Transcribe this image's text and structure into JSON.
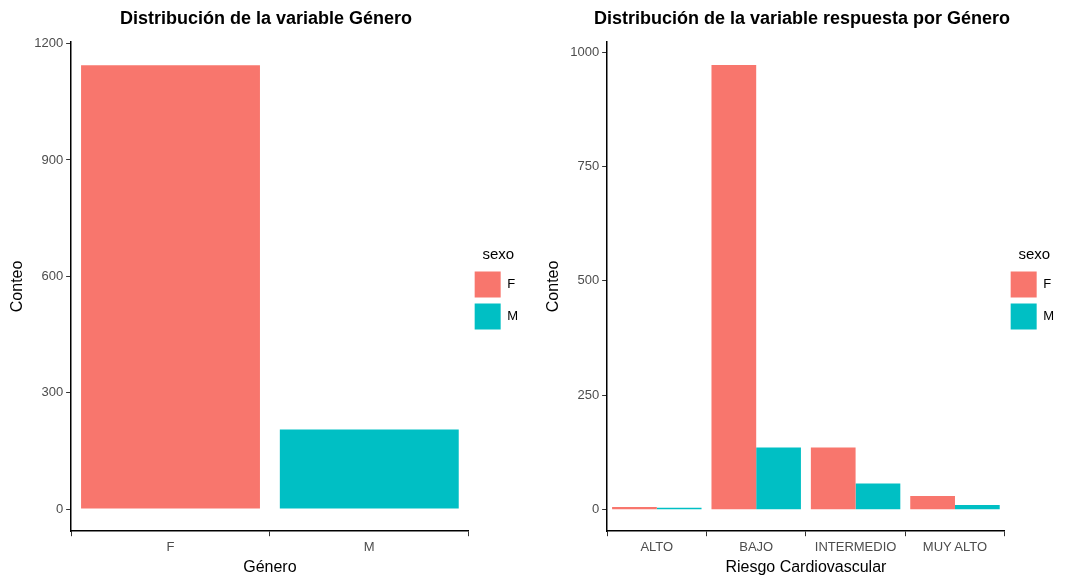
{
  "chart_data": [
    {
      "type": "bar",
      "title": "Distribución de la variable Género",
      "xlabel": "Género",
      "ylabel": "Conteo",
      "categories": [
        "F",
        "M"
      ],
      "legend_title": "sexo",
      "legend": "right",
      "grid": false,
      "ylim": [
        -57,
        1205
      ],
      "yticks": [
        0,
        300,
        600,
        900,
        1200
      ],
      "series": [
        {
          "name": "F",
          "color": "#f8766d",
          "values": [
            1144,
            null
          ]
        },
        {
          "name": "M",
          "color": "#00bfc4",
          "values": [
            null,
            205
          ]
        }
      ]
    },
    {
      "type": "bar",
      "title": "Distribución de la variable respuesta por Género",
      "xlabel": "Riesgo Cardiovascular",
      "ylabel": "Conteo",
      "categories": [
        "ALTO",
        "BAJO",
        "INTERMEDIO",
        "MUY ALTO"
      ],
      "legend_title": "sexo",
      "legend": "right",
      "grid": false,
      "ylim": [
        -47,
        1023
      ],
      "yticks": [
        0,
        250,
        500,
        750,
        1000
      ],
      "series": [
        {
          "name": "F",
          "color": "#f8766d",
          "values": [
            6,
            972,
            136,
            30
          ]
        },
        {
          "name": "M",
          "color": "#00bfc4",
          "values": [
            4,
            136,
            57,
            10
          ]
        }
      ]
    }
  ]
}
